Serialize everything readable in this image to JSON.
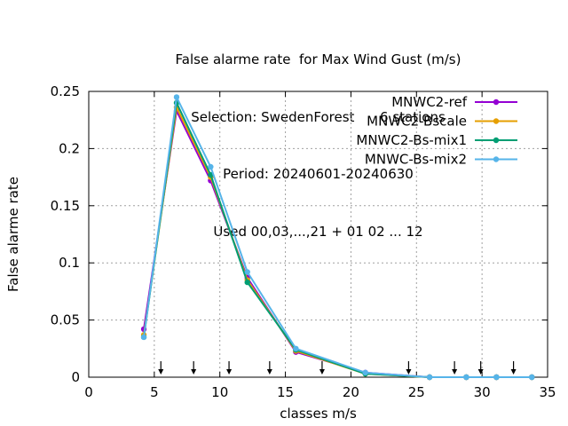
{
  "chart_data": {
    "type": "line",
    "title_lines": [
      "False alarme rate  for Max Wind Gust (m/s)",
      "Selection: SwedenForest      6 stations",
      "Period: 20240601-20240630",
      "Used 00,03,...,21 + 01 02 ... 12"
    ],
    "xlabel": "classes m/s",
    "ylabel": "False alarme rate",
    "xlim": [
      0,
      35
    ],
    "ylim": [
      0,
      0.25
    ],
    "xticks": [
      "0",
      "5",
      "10",
      "15",
      "20",
      "25",
      "30",
      "35"
    ],
    "yticks": [
      "0",
      "0.05",
      "0.1",
      "0.15",
      "0.2",
      "0.25"
    ],
    "grid": true,
    "legend_position": "top-right",
    "arrow_markers_x": [
      5.5,
      8,
      10.7,
      13.8,
      17.8,
      24.4,
      27.9,
      29.9,
      32.4
    ],
    "x": [
      4.2,
      6.7,
      9.3,
      12.1,
      15.8,
      21.1,
      26.0,
      28.8,
      31.1,
      33.8
    ],
    "series": [
      {
        "name": "MNWC2-ref",
        "color": "#9400d3",
        "values": [
          0.042,
          0.233,
          0.172,
          0.087,
          0.022,
          0.004,
          0.0,
          0.0,
          0.0,
          0.0
        ]
      },
      {
        "name": "MNWC2-Bscale",
        "color": "#e69f00",
        "values": [
          0.037,
          0.236,
          0.175,
          0.085,
          0.023,
          0.003,
          0.0,
          0.0,
          0.0,
          0.0
        ]
      },
      {
        "name": "MNWC2-Bs-mix1",
        "color": "#009e73",
        "values": [
          0.035,
          0.24,
          0.177,
          0.083,
          0.024,
          0.003,
          0.0,
          0.0,
          0.0,
          0.0
        ]
      },
      {
        "name": "MNWC-Bs-mix2",
        "color": "#56b4e9",
        "values": [
          0.035,
          0.245,
          0.184,
          0.092,
          0.025,
          0.004,
          0.0,
          0.0,
          0.0,
          0.0
        ]
      }
    ]
  }
}
